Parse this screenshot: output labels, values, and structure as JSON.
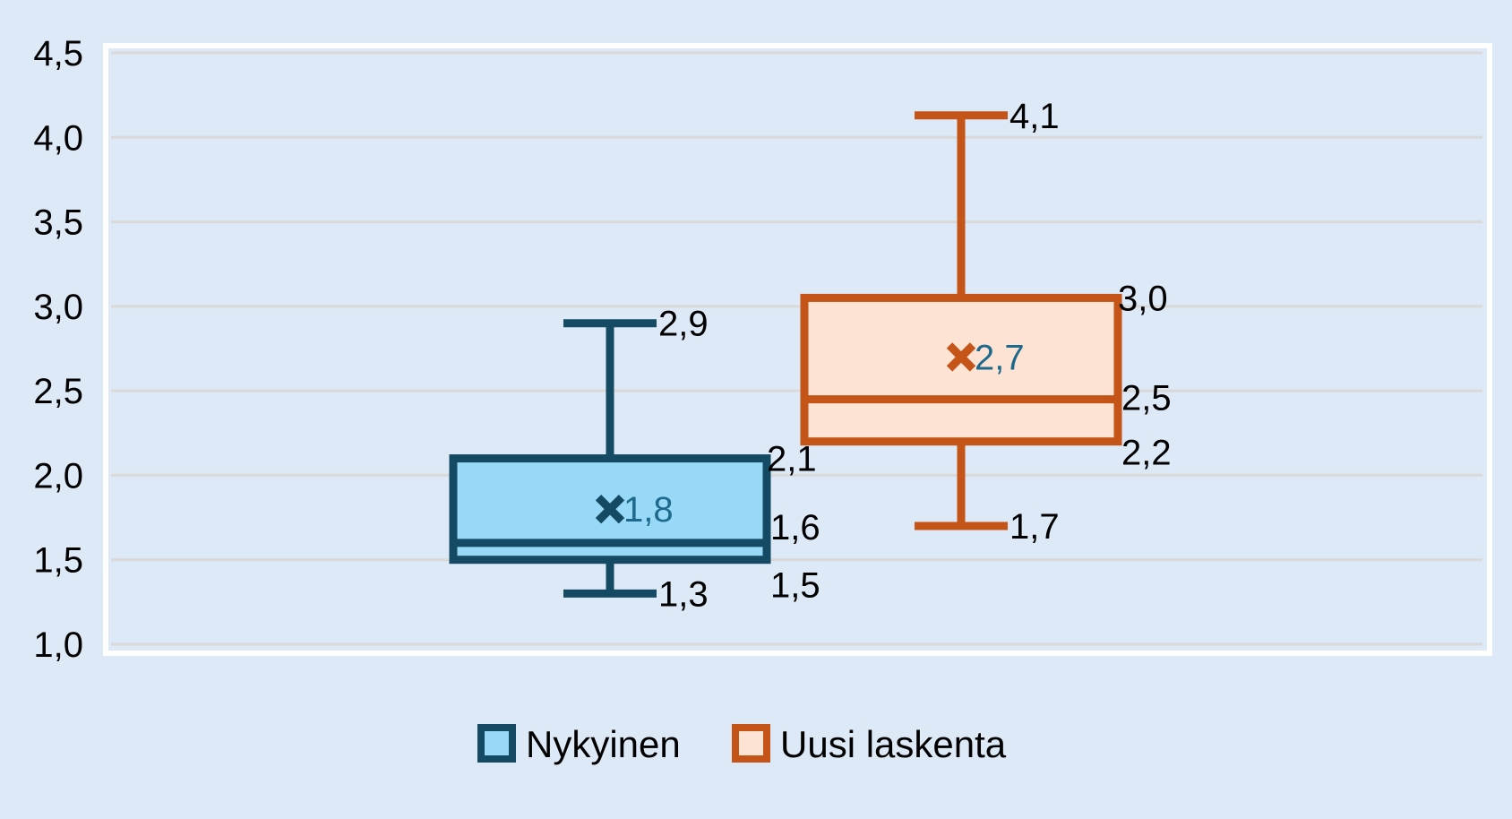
{
  "chart_data": {
    "type": "boxplot",
    "ylim": [
      1.0,
      4.5
    ],
    "yticks": [
      1.0,
      1.5,
      2.0,
      2.5,
      3.0,
      3.5,
      4.0,
      4.5
    ],
    "ytick_labels": [
      "1,0",
      "1,5",
      "2,0",
      "2,5",
      "3,0",
      "3,5",
      "4,0",
      "4,5"
    ],
    "grid": true,
    "legend_position": "bottom",
    "series": [
      {
        "name": "Nykyinen",
        "min": 1.3,
        "q1": 1.5,
        "median": 1.6,
        "q3": 2.1,
        "max": 2.9,
        "mean": 1.8,
        "labels": {
          "min": "1,3",
          "q1": "1,5",
          "median": "1,6",
          "q3": "2,1",
          "max": "2,9",
          "mean": "1,8"
        },
        "stroke": "#144a63",
        "fill": "#97d9f7"
      },
      {
        "name": "Uusi laskenta",
        "min": 1.7,
        "q1": 2.2,
        "median": 2.45,
        "q3": 3.05,
        "max": 4.13,
        "mean": 2.7,
        "labels": {
          "min": "1,7",
          "q1": "2,2",
          "median": "2,5",
          "q3": "3,0",
          "max": "4,1",
          "mean": "2,7"
        },
        "stroke": "#c45418",
        "fill": "#fde3d4"
      }
    ],
    "colors": {
      "background": "#dde9f6",
      "plot_border": "#ffffff",
      "grid": "#d9d9d9",
      "mean_label": "#1f6a8c"
    }
  }
}
